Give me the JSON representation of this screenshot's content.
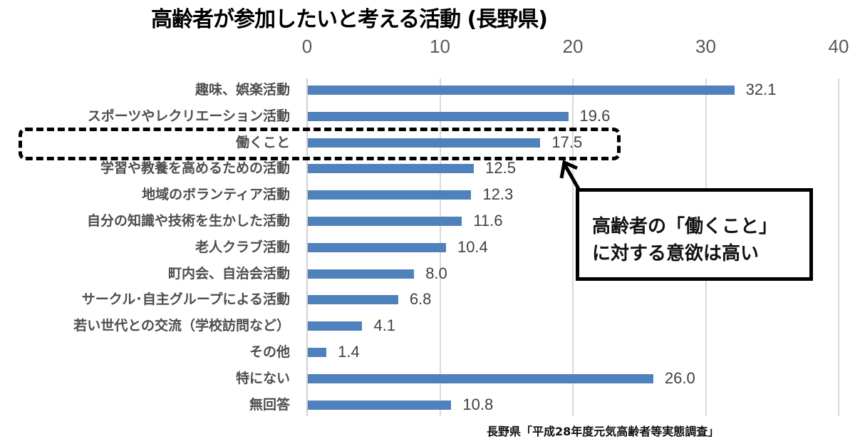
{
  "title": "高齢者が参加したいと考える活動 (長野県)",
  "axis": {
    "ticks": [
      "0",
      "10",
      "20",
      "30",
      "40"
    ]
  },
  "categories": [
    {
      "label": "趣味、娯楽活動",
      "value": "32.1"
    },
    {
      "label": "スポーツやレクリエーション活動",
      "value": "19.6"
    },
    {
      "label": "働くこと",
      "value": "17.5"
    },
    {
      "label": "学習や教養を高めるための活動",
      "value": "12.5"
    },
    {
      "label": "地域のボランティア活動",
      "value": "12.3"
    },
    {
      "label": "自分の知識や技術を生かした活動",
      "value": "11.6"
    },
    {
      "label": "老人クラブ活動",
      "value": "10.4"
    },
    {
      "label": "町内会、自治会活動",
      "value": "8.0"
    },
    {
      "label": "サークル･自主グループによる活動",
      "value": "6.8"
    },
    {
      "label": "若い世代との交流（学校訪問など）",
      "value": "4.1"
    },
    {
      "label": "その他",
      "value": "1.4"
    },
    {
      "label": "特にない",
      "value": "26.0"
    },
    {
      "label": "無回答",
      "value": "10.8"
    }
  ],
  "callout": {
    "line1": "高齢者の「働くこと」",
    "line2": "に対する意欲は高い"
  },
  "source": "長野県「平成28年度元気高齢者等実態調査」",
  "colors": {
    "bar": "#4f81bd",
    "grid": "#d9d9d9"
  },
  "chart_data": {
    "type": "bar",
    "orientation": "horizontal",
    "title": "高齢者が参加したいと考える活動 (長野県)",
    "xlabel": "",
    "ylabel": "",
    "xlim": [
      0,
      40
    ],
    "x_ticks": [
      0,
      10,
      20,
      30,
      40
    ],
    "axis_position": "top",
    "grid": true,
    "categories": [
      "趣味、娯楽活動",
      "スポーツやレクリエーション活動",
      "働くこと",
      "学習や教養を高めるための活動",
      "地域のボランティア活動",
      "自分の知識や技術を生かした活動",
      "老人クラブ活動",
      "町内会、自治会活動",
      "サークル･自主グループによる活動",
      "若い世代との交流（学校訪問など）",
      "その他",
      "特にない",
      "無回答"
    ],
    "values": [
      32.1,
      19.6,
      17.5,
      12.5,
      12.3,
      11.6,
      10.4,
      8.0,
      6.8,
      4.1,
      1.4,
      26.0,
      10.8
    ],
    "annotations": [
      {
        "type": "highlight-box",
        "target": "働くこと"
      },
      {
        "type": "callout",
        "text": "高齢者の「働くこと」に対する意欲は高い"
      }
    ],
    "source": "長野県「平成28年度元気高齢者等実態調査」"
  }
}
